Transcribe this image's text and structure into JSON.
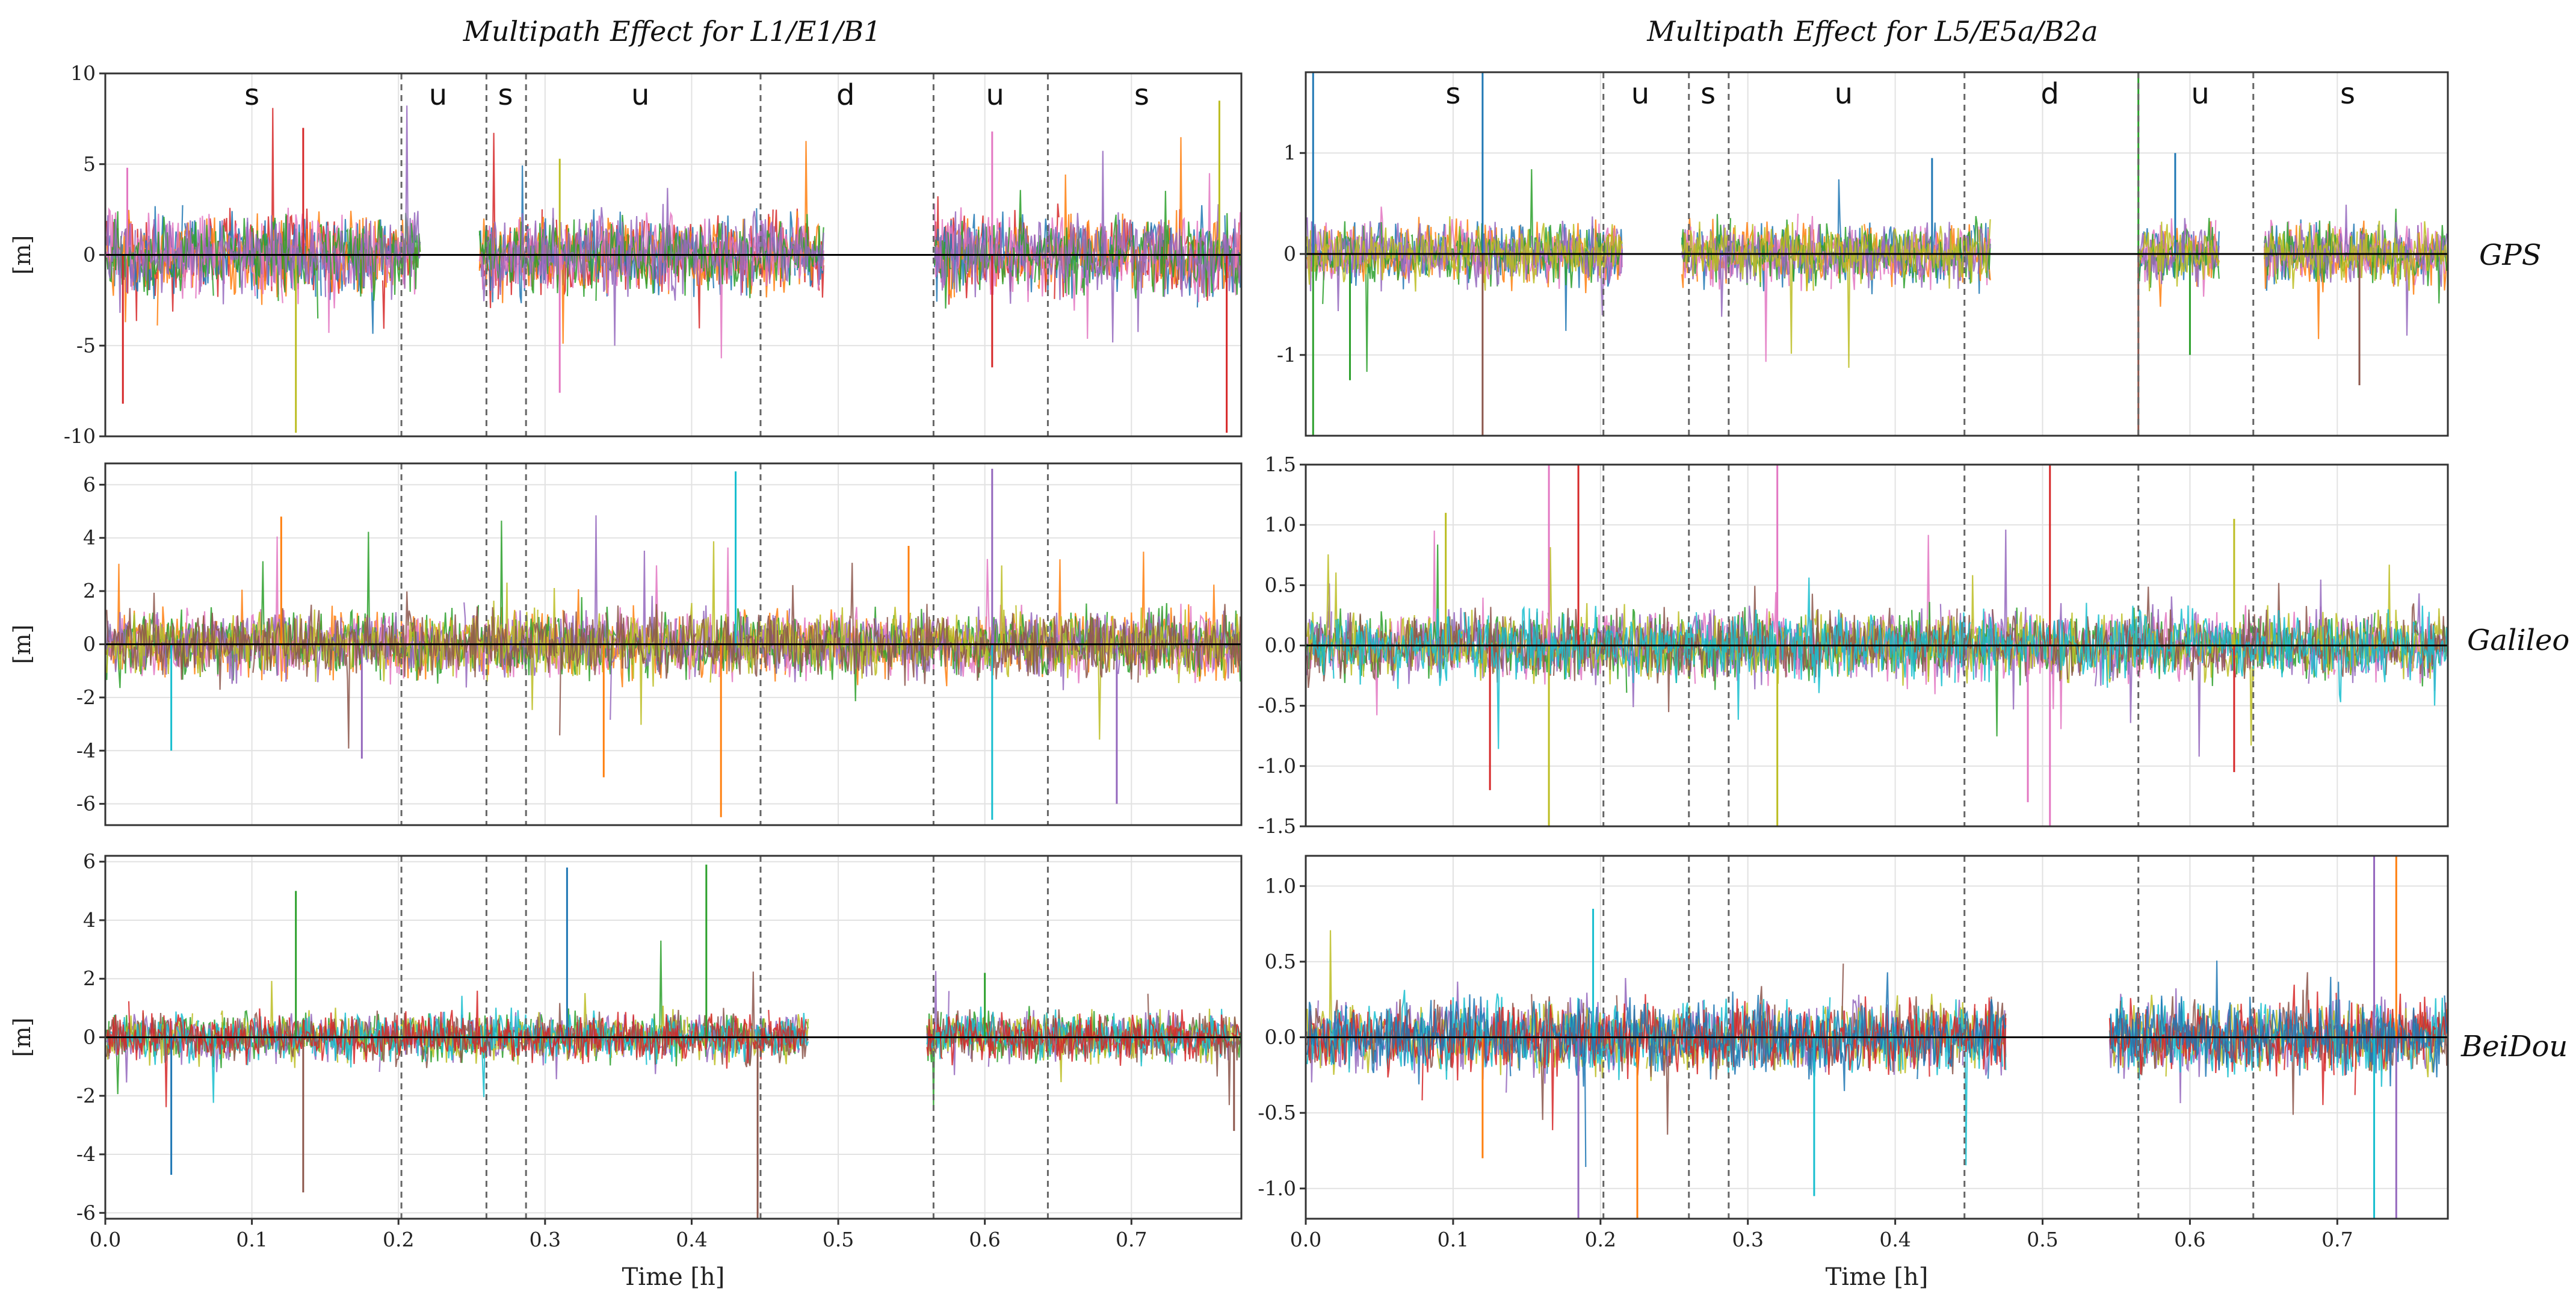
{
  "figure": {
    "titles": [
      "Multipath Effect for L1/E1/B1",
      "Multipath Effect for L5/E5a/B2a"
    ],
    "row_labels": [
      "GPS",
      "Galileo",
      "BeiDou"
    ],
    "y_unit_label": "[m]",
    "x_label": "Time [h]",
    "colors": {
      "zero_line": "#000000",
      "divider": "#666666",
      "grid": "#e2e2e2",
      "frame": "#333333",
      "series": [
        "#d62728",
        "#1f77b4",
        "#ff7f0e",
        "#e377c2",
        "#2ca02c",
        "#9467bd",
        "#bcbd22",
        "#8c564b",
        "#17becf"
      ]
    }
  },
  "chart_data": [
    {
      "type": "line",
      "title": "Multipath Effect for L1/E1/B1",
      "row": "GPS",
      "xlabel": "",
      "ylabel": "[m]",
      "xlim": [
        0.0,
        0.775
      ],
      "ylim": [
        -10,
        10
      ],
      "xticks": [],
      "xtick_labels": [],
      "yticks": [
        -10,
        -5,
        0,
        5,
        10
      ],
      "ytick_labels": [
        "-10",
        "-5",
        "0",
        "5",
        "10"
      ],
      "grid": true,
      "amplitude": 1.6,
      "segment_labels": [
        "s",
        "u",
        "s",
        "u",
        "d",
        "u",
        "s"
      ],
      "segment_label_x": [
        0.1,
        0.227,
        0.273,
        0.365,
        0.505,
        0.607,
        0.707
      ],
      "segment_boundaries": [
        0.202,
        0.26,
        0.287,
        0.447,
        0.565,
        0.643
      ],
      "data_gaps": [
        [
          0.215,
          0.255
        ],
        [
          0.49,
          0.565
        ]
      ],
      "spikes": [
        {
          "x": 0.012,
          "y": -8.2
        },
        {
          "x": 0.015,
          "y": 4.8
        },
        {
          "x": 0.13,
          "y": -9.8
        },
        {
          "x": 0.135,
          "y": 7.0
        },
        {
          "x": 0.31,
          "y": -7.6
        },
        {
          "x": 0.31,
          "y": 5.3
        },
        {
          "x": 0.605,
          "y": -6.2
        },
        {
          "x": 0.605,
          "y": 6.8
        },
        {
          "x": 0.76,
          "y": 8.5
        },
        {
          "x": 0.765,
          "y": -9.8
        }
      ]
    },
    {
      "type": "line",
      "title": "Multipath Effect for L5/E5a/B2a",
      "row": "GPS",
      "xlabel": "",
      "ylabel": "",
      "xlim": [
        0.0,
        0.775
      ],
      "ylim": [
        -1.8,
        1.8
      ],
      "xticks": [],
      "xtick_labels": [],
      "yticks": [
        -1,
        0,
        1
      ],
      "ytick_labels": [
        "-1",
        "0",
        "1"
      ],
      "grid": true,
      "amplitude": 0.22,
      "segment_labels": [
        "s",
        "u",
        "s",
        "u",
        "d",
        "u",
        "s"
      ],
      "segment_label_x": [
        0.1,
        0.227,
        0.273,
        0.365,
        0.505,
        0.607,
        0.707
      ],
      "segment_boundaries": [
        0.202,
        0.26,
        0.287,
        0.447,
        0.565,
        0.643
      ],
      "data_gaps": [
        [
          0.215,
          0.255
        ],
        [
          0.465,
          0.565
        ],
        [
          0.62,
          0.65
        ]
      ],
      "spikes": [
        {
          "x": 0.005,
          "y": 1.8
        },
        {
          "x": 0.005,
          "y": -1.8
        },
        {
          "x": 0.12,
          "y": -1.8
        },
        {
          "x": 0.12,
          "y": 1.8
        },
        {
          "x": 0.565,
          "y": 1.8
        },
        {
          "x": 0.565,
          "y": -1.8
        },
        {
          "x": 0.59,
          "y": 1.0
        },
        {
          "x": 0.6,
          "y": -1.0
        },
        {
          "x": 0.715,
          "y": -1.3
        },
        {
          "x": 0.425,
          "y": 0.95
        },
        {
          "x": 0.03,
          "y": -1.25
        }
      ]
    },
    {
      "type": "line",
      "title": "",
      "row": "Galileo",
      "xlabel": "",
      "ylabel": "[m]",
      "xlim": [
        0.0,
        0.775
      ],
      "ylim": [
        -6.8,
        6.8
      ],
      "xticks": [],
      "xtick_labels": [],
      "yticks": [
        -6,
        -4,
        -2,
        0,
        2,
        4,
        6
      ],
      "ytick_labels": [
        "-6",
        "-4",
        "-2",
        "0",
        "2",
        "4",
        "6"
      ],
      "grid": true,
      "amplitude": 0.9,
      "segment_labels": [],
      "segment_label_x": [],
      "segment_boundaries": [
        0.202,
        0.26,
        0.287,
        0.447,
        0.565,
        0.643
      ],
      "data_gaps": [],
      "spikes": [
        {
          "x": 0.12,
          "y": 4.8
        },
        {
          "x": 0.175,
          "y": -4.3
        },
        {
          "x": 0.43,
          "y": 6.5
        },
        {
          "x": 0.42,
          "y": -6.5
        },
        {
          "x": 0.605,
          "y": 6.6
        },
        {
          "x": 0.605,
          "y": -6.6
        },
        {
          "x": 0.548,
          "y": 3.7
        },
        {
          "x": 0.69,
          "y": -6.0
        },
        {
          "x": 0.045,
          "y": -4.0
        },
        {
          "x": 0.34,
          "y": -5.0
        }
      ]
    },
    {
      "type": "line",
      "title": "",
      "row": "Galileo",
      "xlabel": "",
      "ylabel": "",
      "xlim": [
        0.0,
        0.775
      ],
      "ylim": [
        -1.5,
        1.5
      ],
      "xticks": [],
      "xtick_labels": [],
      "yticks": [
        -1.5,
        -1.0,
        -0.5,
        0.0,
        0.5,
        1.0,
        1.5
      ],
      "ytick_labels": [
        "-1.5",
        "-1.0",
        "-0.5",
        "0.0",
        "0.5",
        "1.0",
        "1.5"
      ],
      "grid": true,
      "amplitude": 0.2,
      "segment_labels": [],
      "segment_label_x": [],
      "segment_boundaries": [
        0.202,
        0.26,
        0.287,
        0.447,
        0.565,
        0.643
      ],
      "data_gaps": [],
      "spikes": [
        {
          "x": 0.165,
          "y": 1.5
        },
        {
          "x": 0.165,
          "y": -1.5
        },
        {
          "x": 0.185,
          "y": 1.5
        },
        {
          "x": 0.32,
          "y": 1.5
        },
        {
          "x": 0.32,
          "y": -1.5
        },
        {
          "x": 0.505,
          "y": 1.5
        },
        {
          "x": 0.505,
          "y": -1.5
        },
        {
          "x": 0.095,
          "y": 1.1
        },
        {
          "x": 0.125,
          "y": -1.2
        },
        {
          "x": 0.49,
          "y": -1.3
        },
        {
          "x": 0.63,
          "y": 1.05
        },
        {
          "x": 0.63,
          "y": -1.05
        }
      ]
    },
    {
      "type": "line",
      "title": "",
      "row": "BeiDou",
      "xlabel": "Time [h]",
      "ylabel": "[m]",
      "xlim": [
        0.0,
        0.775
      ],
      "ylim": [
        -6.2,
        6.2
      ],
      "xticks": [
        0.0,
        0.1,
        0.2,
        0.3,
        0.4,
        0.5,
        0.6,
        0.7
      ],
      "xtick_labels": [
        "0.0",
        "0.1",
        "0.2",
        "0.3",
        "0.4",
        "0.5",
        "0.6",
        "0.7"
      ],
      "yticks": [
        -6,
        -4,
        -2,
        0,
        2,
        4,
        6
      ],
      "ytick_labels": [
        "-6",
        "-4",
        "-2",
        "0",
        "2",
        "4",
        "6"
      ],
      "grid": true,
      "amplitude": 0.6,
      "segment_labels": [],
      "segment_label_x": [],
      "segment_boundaries": [
        0.202,
        0.26,
        0.287,
        0.447,
        0.565,
        0.643
      ],
      "data_gaps": [
        [
          0.48,
          0.56
        ]
      ],
      "spikes": [
        {
          "x": 0.13,
          "y": 5.0
        },
        {
          "x": 0.135,
          "y": -5.3
        },
        {
          "x": 0.315,
          "y": 5.8
        },
        {
          "x": 0.41,
          "y": 5.9
        },
        {
          "x": 0.445,
          "y": -6.2
        },
        {
          "x": 0.045,
          "y": -4.7
        },
        {
          "x": 0.6,
          "y": 2.2
        },
        {
          "x": 0.77,
          "y": -3.2
        }
      ]
    },
    {
      "type": "line",
      "title": "",
      "row": "BeiDou",
      "xlabel": "Time [h]",
      "ylabel": "",
      "xlim": [
        0.0,
        0.775
      ],
      "ylim": [
        -1.2,
        1.2
      ],
      "xticks": [
        0.0,
        0.1,
        0.2,
        0.3,
        0.4,
        0.5,
        0.6,
        0.7
      ],
      "xtick_labels": [
        "0.0",
        "0.1",
        "0.2",
        "0.3",
        "0.4",
        "0.5",
        "0.6",
        "0.7"
      ],
      "yticks": [
        -1.0,
        -0.5,
        0.0,
        0.5,
        1.0
      ],
      "ytick_labels": [
        "-1.0",
        "-0.5",
        "0.0",
        "0.5",
        "1.0"
      ],
      "grid": true,
      "amplitude": 0.17,
      "segment_labels": [],
      "segment_label_x": [],
      "segment_boundaries": [
        0.202,
        0.26,
        0.287,
        0.447,
        0.565,
        0.643
      ],
      "data_gaps": [
        [
          0.475,
          0.545
        ]
      ],
      "spikes": [
        {
          "x": 0.185,
          "y": -1.2
        },
        {
          "x": 0.195,
          "y": 0.85
        },
        {
          "x": 0.225,
          "y": -1.2
        },
        {
          "x": 0.725,
          "y": 1.2
        },
        {
          "x": 0.725,
          "y": -1.2
        },
        {
          "x": 0.74,
          "y": 1.2
        },
        {
          "x": 0.74,
          "y": -1.2
        },
        {
          "x": 0.345,
          "y": -1.05
        },
        {
          "x": 0.12,
          "y": -0.8
        }
      ]
    }
  ]
}
